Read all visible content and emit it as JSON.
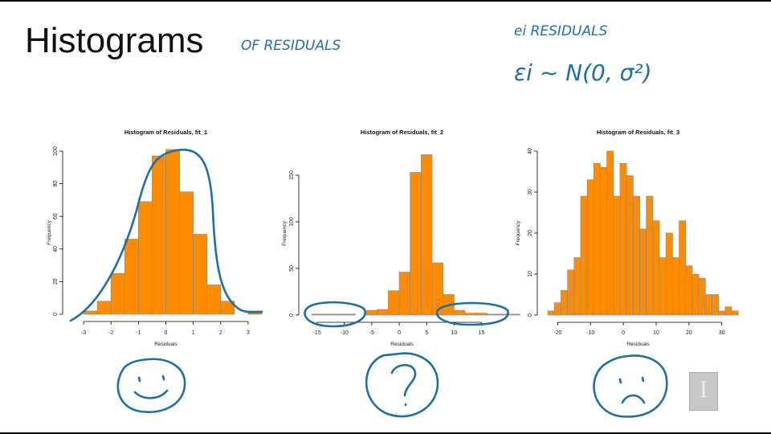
{
  "slide": {
    "title": "Histograms",
    "annotations": {
      "subtitle": "OF RESIDUALS",
      "line1": "ei   RESIDUALS",
      "line2": "εi ~ N(0, σ²)"
    },
    "logo_letter": "I"
  },
  "colors": {
    "bar_fill": "#ff8c00",
    "bar_border": "#8a8a8a",
    "ink": "#1f6fa4"
  },
  "chart_data": [
    {
      "type": "bar",
      "title": "Histogram of Residuals, fit_1",
      "xlabel": "Residuals",
      "ylabel": "Frequency",
      "bin_start": -3,
      "bin_width": 0.5,
      "values": [
        2,
        8,
        25,
        46,
        69,
        97,
        101,
        75,
        49,
        18,
        8,
        0,
        2
      ],
      "xlim": [
        -3.5,
        3.5
      ],
      "ylim": [
        0,
        100
      ],
      "xticks": [
        -3,
        -2,
        -1,
        0,
        1,
        2,
        3
      ],
      "yticks": [
        0,
        20,
        40,
        60,
        80,
        100
      ],
      "grid": false
    },
    {
      "type": "bar",
      "title": "Histogram of Residuals, fit_2",
      "xlabel": "Residuals",
      "ylabel": "Frequency",
      "bin_start": -16,
      "bin_width": 2,
      "values": [
        1,
        1,
        1,
        1,
        0,
        5,
        6,
        26,
        46,
        153,
        172,
        56,
        22,
        5,
        2,
        2,
        1,
        1,
        1
      ],
      "xlim": [
        -17,
        18
      ],
      "ylim": [
        0,
        175
      ],
      "xticks": [
        -15,
        -10,
        -5,
        0,
        5,
        10,
        15
      ],
      "yticks": [
        0,
        50,
        100,
        150
      ],
      "grid": false
    },
    {
      "type": "bar",
      "title": "Histogram of Residuals, fit_3",
      "xlabel": "Residuals",
      "ylabel": "Frequency",
      "bin_start": -23,
      "bin_width": 2,
      "values": [
        1,
        3,
        6,
        11,
        14,
        29,
        33,
        37,
        36,
        40,
        29,
        37,
        34,
        29,
        21,
        29,
        23,
        14,
        20,
        14,
        23,
        12,
        10,
        9,
        5,
        5,
        1,
        2,
        1
      ],
      "xlim": [
        -24,
        33
      ],
      "ylim": [
        0,
        40
      ],
      "xticks": [
        -20,
        -10,
        0,
        10,
        20,
        30
      ],
      "yticks": [
        0,
        10,
        20,
        30,
        40
      ],
      "grid": false
    }
  ]
}
